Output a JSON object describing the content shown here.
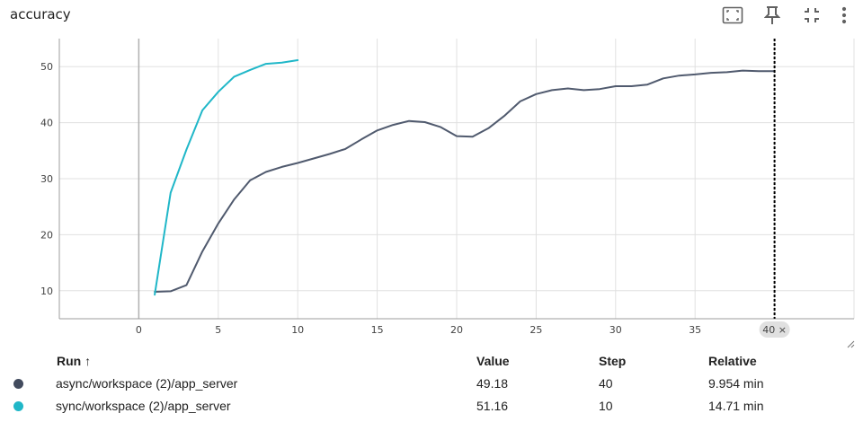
{
  "card": {
    "title": "accuracy",
    "toolbar": [
      {
        "icon": "fit-domain-icon"
      },
      {
        "icon": "pin-icon"
      },
      {
        "icon": "collapse-icon"
      },
      {
        "icon": "more-vert-icon"
      }
    ]
  },
  "chart_data": {
    "type": "line",
    "title": "accuracy",
    "xlabel": "",
    "ylabel": "",
    "xlim": [
      -5,
      45
    ],
    "ylim": [
      5,
      55
    ],
    "xticks": [
      "0",
      "5",
      "10",
      "15",
      "20",
      "25",
      "30",
      "35",
      "40"
    ],
    "yticks": [
      "10",
      "20",
      "30",
      "40",
      "50"
    ],
    "grid": true,
    "cursor": {
      "x": 40,
      "label": "40 ×"
    },
    "series": [
      {
        "name": "async/workspace (2)/app_server",
        "color": "#505A6E",
        "x": [
          1,
          2,
          3,
          4,
          5,
          6,
          7,
          8,
          9,
          10,
          11,
          12,
          13,
          14,
          15,
          16,
          17,
          18,
          19,
          20,
          21,
          22,
          23,
          24,
          25,
          26,
          27,
          28,
          29,
          30,
          31,
          32,
          33,
          34,
          35,
          36,
          37,
          38,
          39,
          40
        ],
        "values": [
          9.8,
          9.9,
          11.0,
          17.0,
          22.0,
          26.3,
          29.7,
          31.2,
          32.1,
          32.8,
          33.6,
          34.4,
          35.3,
          37.0,
          38.6,
          39.6,
          40.3,
          40.1,
          39.2,
          37.6,
          37.5,
          39.0,
          41.2,
          43.8,
          45.1,
          45.8,
          46.1,
          45.8,
          46.0,
          46.5,
          46.5,
          46.8,
          47.9,
          48.4,
          48.6,
          48.9,
          49.0,
          49.3,
          49.2,
          49.18
        ]
      },
      {
        "name": "sync/workspace (2)/app_server",
        "color": "#20B7C8",
        "x": [
          1,
          2,
          3,
          4,
          5,
          6,
          7,
          8,
          9,
          10
        ],
        "values": [
          9.3,
          27.5,
          35.2,
          42.2,
          45.5,
          48.2,
          49.4,
          50.5,
          50.7,
          51.16
        ]
      }
    ]
  },
  "table": {
    "columns": {
      "run": "Run ↑",
      "value": "Value",
      "step": "Step",
      "relative": "Relative"
    },
    "rows": [
      {
        "color": "#424B5E",
        "run": "async/workspace (2)/app_server",
        "value": "49.18",
        "step": "40",
        "relative": "9.954 min"
      },
      {
        "color": "#20B7C8",
        "run": "sync/workspace (2)/app_server",
        "value": "51.16",
        "step": "10",
        "relative": "14.71 min"
      }
    ]
  }
}
